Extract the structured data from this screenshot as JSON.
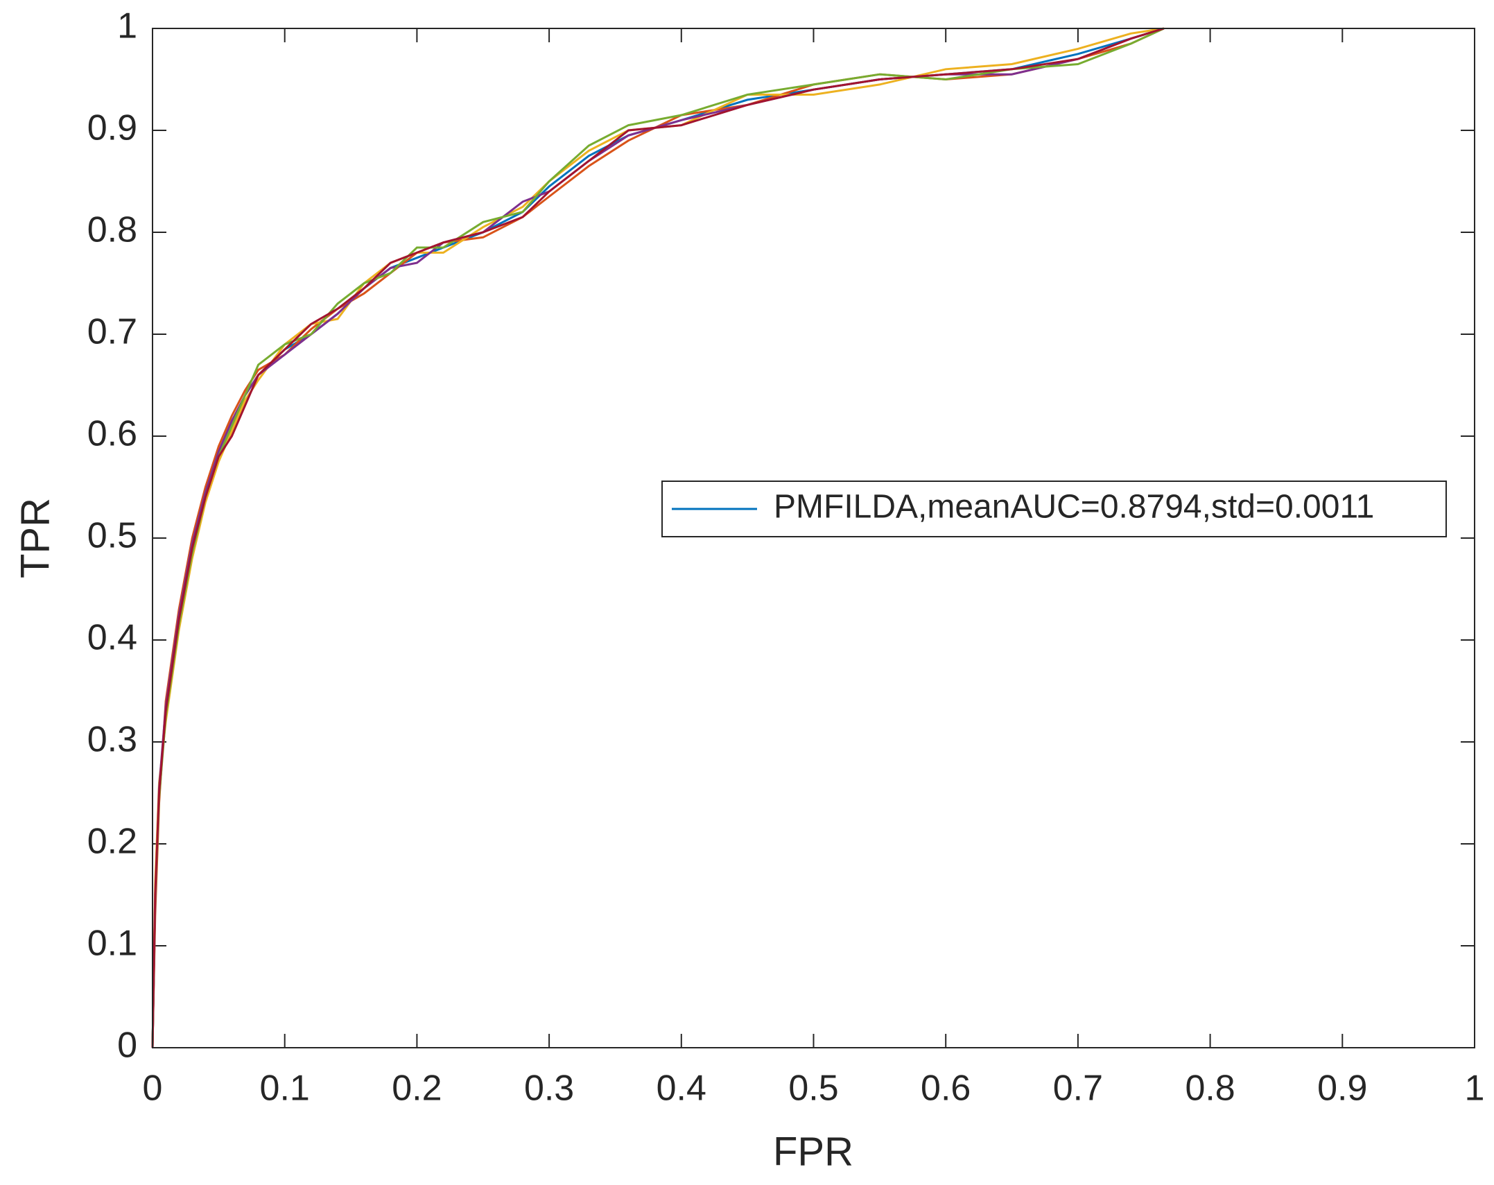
{
  "chart_data": {
    "type": "line",
    "xlabel": "FPR",
    "ylabel": "TPR",
    "x": [
      0,
      0.002,
      0.005,
      0.01,
      0.02,
      0.03,
      0.04,
      0.05,
      0.06,
      0.07,
      0.08,
      0.1,
      0.12,
      0.14,
      0.16,
      0.18,
      0.2,
      0.22,
      0.25,
      0.28,
      0.3,
      0.33,
      0.36,
      0.4,
      0.45,
      0.5,
      0.55,
      0.6,
      0.65,
      0.7,
      0.74,
      0.765
    ],
    "series": [
      {
        "name": "PMFILDA,meanAUC=0.8794,std=0.0011",
        "color": "#0072BD",
        "values": [
          0,
          0.15,
          0.25,
          0.33,
          0.42,
          0.49,
          0.54,
          0.58,
          0.61,
          0.64,
          0.66,
          0.685,
          0.7,
          0.72,
          0.745,
          0.765,
          0.775,
          0.785,
          0.8,
          0.82,
          0.845,
          0.875,
          0.895,
          0.91,
          0.93,
          0.94,
          0.95,
          0.955,
          0.96,
          0.975,
          0.99,
          1
        ]
      },
      {
        "color": "#D95319",
        "values": [
          0,
          0.13,
          0.24,
          0.34,
          0.43,
          0.5,
          0.55,
          0.59,
          0.62,
          0.645,
          0.665,
          0.68,
          0.705,
          0.725,
          0.74,
          0.76,
          0.78,
          0.79,
          0.795,
          0.815,
          0.835,
          0.865,
          0.89,
          0.915,
          0.925,
          0.945,
          0.955,
          0.95,
          0.955,
          0.97,
          0.985,
          1
        ]
      },
      {
        "color": "#EDB120",
        "values": [
          0,
          0.16,
          0.26,
          0.32,
          0.41,
          0.48,
          0.535,
          0.575,
          0.605,
          0.635,
          0.655,
          0.69,
          0.71,
          0.715,
          0.75,
          0.77,
          0.78,
          0.78,
          0.805,
          0.825,
          0.85,
          0.88,
          0.9,
          0.905,
          0.935,
          0.935,
          0.945,
          0.96,
          0.965,
          0.98,
          0.995,
          1
        ]
      },
      {
        "color": "#7E2F8E",
        "values": [
          0,
          0.14,
          0.255,
          0.335,
          0.425,
          0.495,
          0.545,
          0.585,
          0.615,
          0.64,
          0.66,
          0.68,
          0.7,
          0.72,
          0.745,
          0.765,
          0.77,
          0.79,
          0.8,
          0.83,
          0.84,
          0.87,
          0.895,
          0.91,
          0.925,
          0.94,
          0.95,
          0.955,
          0.955,
          0.97,
          0.99,
          1
        ]
      },
      {
        "color": "#77AC30",
        "values": [
          0,
          0.145,
          0.245,
          0.325,
          0.415,
          0.485,
          0.54,
          0.58,
          0.61,
          0.64,
          0.67,
          0.69,
          0.7,
          0.73,
          0.75,
          0.76,
          0.785,
          0.785,
          0.81,
          0.82,
          0.85,
          0.885,
          0.905,
          0.915,
          0.935,
          0.945,
          0.955,
          0.95,
          0.96,
          0.965,
          0.985,
          1
        ]
      },
      {
        "color": "#A2142F",
        "values": [
          0,
          0.15,
          0.25,
          0.33,
          0.42,
          0.49,
          0.54,
          0.58,
          0.6,
          0.63,
          0.66,
          0.685,
          0.71,
          0.725,
          0.745,
          0.77,
          0.78,
          0.79,
          0.8,
          0.815,
          0.84,
          0.87,
          0.9,
          0.905,
          0.925,
          0.94,
          0.95,
          0.955,
          0.96,
          0.97,
          0.99,
          1
        ]
      }
    ],
    "xlim": [
      0,
      1
    ],
    "ylim": [
      0,
      1
    ],
    "xticks": [
      0,
      0.1,
      0.2,
      0.3,
      0.4,
      0.5,
      0.6,
      0.7,
      0.8,
      0.9,
      1
    ],
    "yticks": [
      0,
      0.1,
      0.2,
      0.3,
      0.4,
      0.5,
      0.6,
      0.7,
      0.8,
      0.9,
      1
    ],
    "grid": false,
    "legend": "east"
  }
}
